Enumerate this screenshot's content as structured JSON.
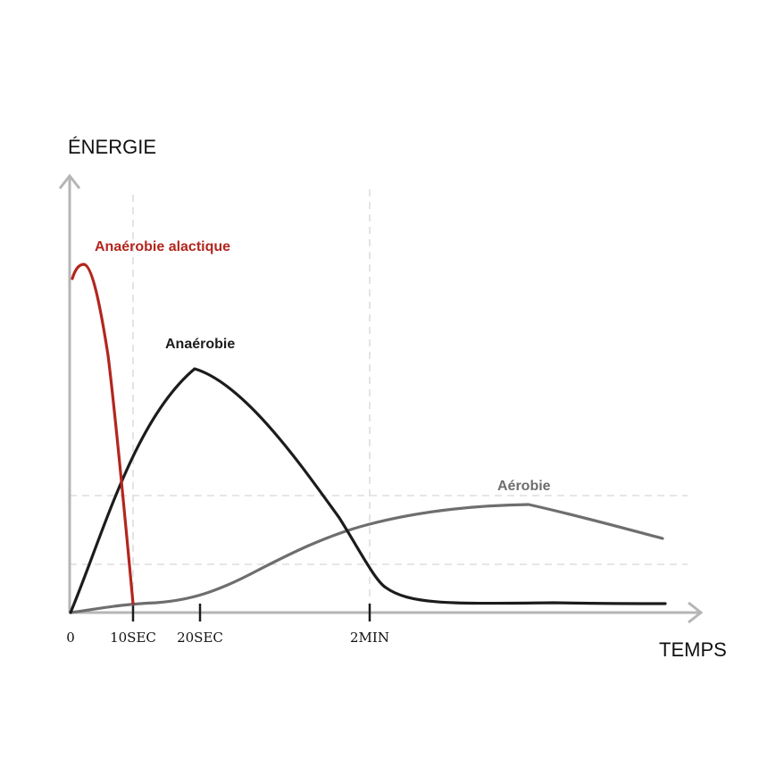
{
  "chart_data": {
    "type": "line",
    "ylabel": "ÉNERGIE",
    "xlabel": "TEMPS",
    "x_ticks": [
      "0",
      "10SEC",
      "20SEC",
      "2MIN"
    ],
    "grid": "dashed reference lines at 10SEC, 2MIN and two energy levels",
    "series": [
      {
        "name": "Anaérobie alactique",
        "color": "#b3261e",
        "points": [
          [
            0,
            0.9
          ],
          [
            1,
            0.94
          ],
          [
            2,
            0.93
          ],
          [
            4,
            0.8
          ],
          [
            6,
            0.56
          ],
          [
            8,
            0.28
          ],
          [
            9,
            0.14
          ],
          [
            10,
            0.0
          ]
        ]
      },
      {
        "name": "Anaérobie",
        "color": "#1c1c1c",
        "points": [
          [
            0,
            0.0
          ],
          [
            5,
            0.32
          ],
          [
            10,
            0.56
          ],
          [
            15,
            0.68
          ],
          [
            20,
            0.66
          ],
          [
            30,
            0.58
          ],
          [
            40,
            0.45
          ],
          [
            60,
            0.3
          ],
          [
            90,
            0.12
          ],
          [
            120,
            0.02
          ],
          [
            150,
            0.0
          ],
          [
            200,
            0.01
          ],
          [
            300,
            0.0
          ]
        ]
      },
      {
        "name": "Aérobie",
        "color": "#6e6e6e",
        "points": [
          [
            0,
            0.0
          ],
          [
            10,
            0.02
          ],
          [
            20,
            0.04
          ],
          [
            40,
            0.12
          ],
          [
            60,
            0.2
          ],
          [
            90,
            0.26
          ],
          [
            120,
            0.3
          ],
          [
            160,
            0.32
          ],
          [
            220,
            0.32
          ],
          [
            300,
            0.26
          ]
        ]
      }
    ]
  }
}
